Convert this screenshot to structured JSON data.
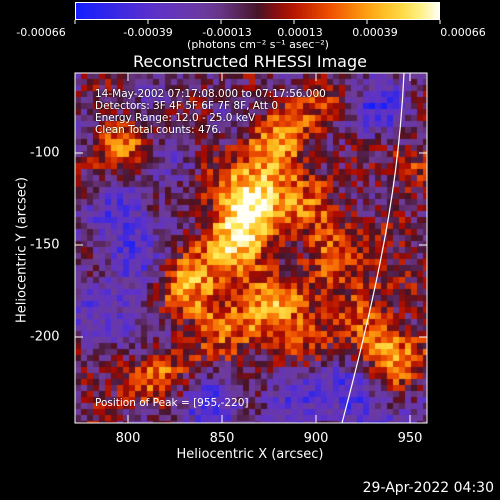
{
  "colorbar": {
    "tick_labels": [
      "-0.00066",
      "-0.00039",
      "-0.00013",
      "0.00013",
      "0.00039",
      "0.00066"
    ],
    "units": "(photons cm⁻² s⁻¹ asec⁻²)"
  },
  "title": "Reconstructed RHESSI Image",
  "info": {
    "line1": "14-May-2002 07:17:08.000 to 07:17:56.000",
    "line2": "Detectors: 3F 4F 5F 6F 7F 8F, Att 0",
    "line3": "Energy Range: 12.0 - 25.0 keV",
    "line4": "Clean      Total counts: 476."
  },
  "peak": "Position of Peak = [955,-220]",
  "axes": {
    "xlabel": "Heliocentric X (arcsec)",
    "ylabel": "Heliocentric Y (arcsec)",
    "xticks": [
      "800",
      "850",
      "900",
      "950"
    ],
    "yticks": [
      "-100",
      "-150",
      "-200"
    ]
  },
  "timestamp": "29-Apr-2022 04:30"
}
